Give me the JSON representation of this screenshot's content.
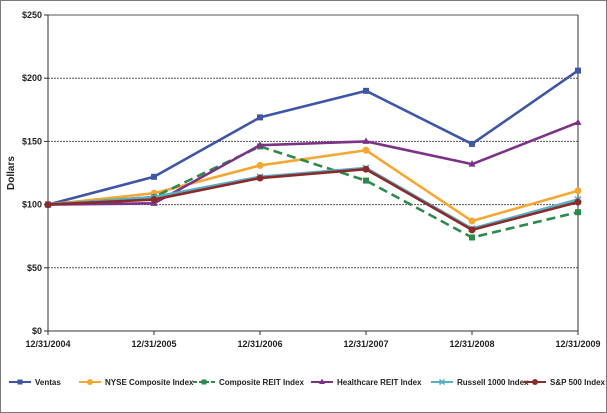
{
  "chart_data": {
    "type": "line",
    "categories": [
      "12/31/2004",
      "12/31/2005",
      "12/31/2006",
      "12/31/2007",
      "12/31/2008",
      "12/31/2009"
    ],
    "ylabel": "Dollars",
    "ylim": [
      0,
      250
    ],
    "yticks": [
      0,
      50,
      100,
      150,
      200,
      250
    ],
    "ytick_labels": [
      "$0",
      "$50",
      "$100",
      "$150",
      "$200",
      "$250"
    ],
    "grid": "horizontal dashed",
    "legend_position": "bottom",
    "series": [
      {
        "name": "Ventas",
        "color": "#3f56a6",
        "marker": "square",
        "dash": "solid",
        "values": [
          100,
          122,
          169,
          190,
          148,
          206
        ]
      },
      {
        "name": "NYSE Composite Index",
        "color": "#f5a733",
        "marker": "circle",
        "dash": "solid",
        "values": [
          100,
          109,
          131,
          143,
          87,
          111
        ]
      },
      {
        "name": "Composite REIT Index",
        "color": "#2d8a4a",
        "marker": "square",
        "dash": "dashed",
        "values": [
          100,
          106,
          146,
          119,
          74,
          94
        ]
      },
      {
        "name": "Healthcare REIT Index",
        "color": "#7c3287",
        "marker": "triangle",
        "dash": "solid",
        "values": [
          100,
          101,
          147,
          150,
          132,
          165
        ]
      },
      {
        "name": "Russell 1000 Index",
        "color": "#59aec4",
        "marker": "x",
        "dash": "solid",
        "values": [
          100,
          106,
          122,
          129,
          81,
          104
        ]
      },
      {
        "name": "S&P 500 Index",
        "color": "#8a2a2a",
        "marker": "circle",
        "dash": "solid",
        "values": [
          100,
          104,
          121,
          128,
          80,
          102
        ]
      }
    ]
  }
}
